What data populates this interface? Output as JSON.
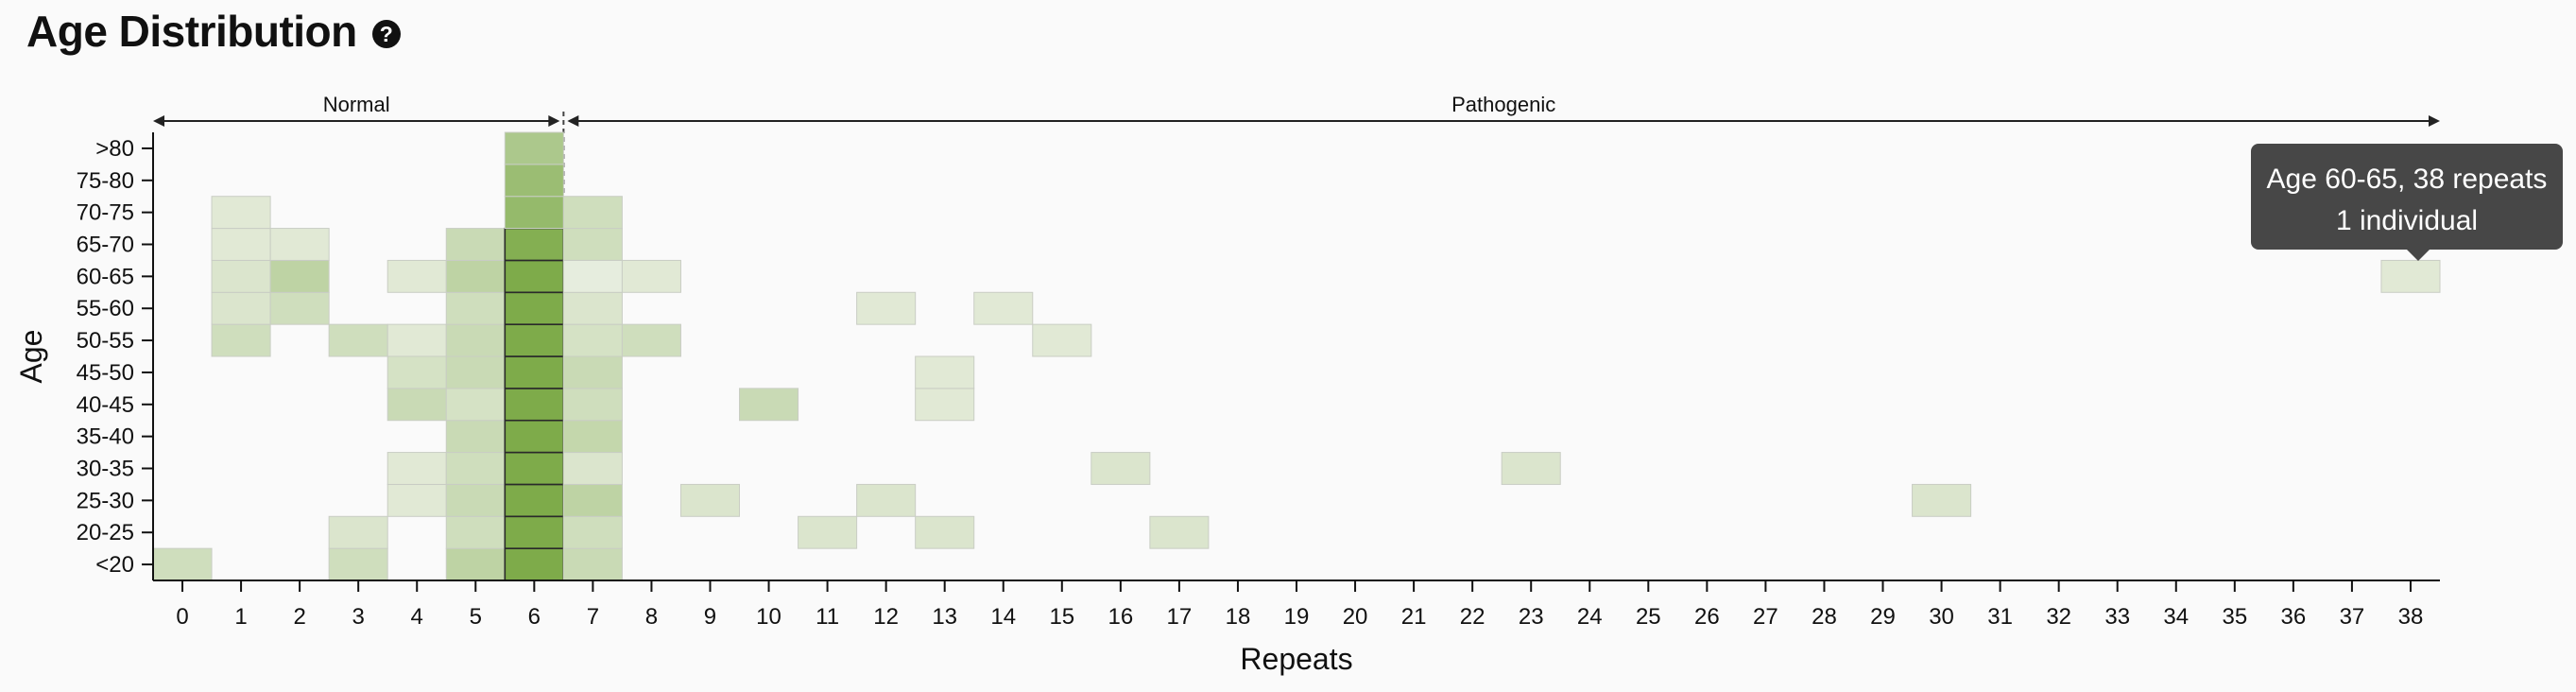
{
  "header": {
    "title": "Age Distribution",
    "help_icon": "question-circle-icon"
  },
  "chart_data": {
    "type": "heatmap",
    "title": "Age Distribution",
    "xlabel": "Repeats",
    "ylabel": "Age",
    "x": [
      0,
      1,
      2,
      3,
      4,
      5,
      6,
      7,
      8,
      9,
      10,
      11,
      12,
      13,
      14,
      15,
      16,
      17,
      18,
      19,
      20,
      21,
      22,
      23,
      24,
      25,
      26,
      27,
      28,
      29,
      30,
      31,
      32,
      33,
      34,
      35,
      36,
      37,
      38
    ],
    "y": [
      "<20",
      "20-25",
      "25-30",
      "30-35",
      "35-40",
      "40-45",
      "45-50",
      "50-55",
      "55-60",
      "60-65",
      "65-70",
      "70-75",
      "75-80",
      ">80"
    ],
    "color_scale": {
      "low": "#f2f4ee",
      "high": "#7eab4a"
    },
    "regions": [
      {
        "label": "Normal",
        "from": 0,
        "to": 6
      },
      {
        "label": "Pathogenic",
        "from": 7,
        "to": 38
      }
    ],
    "cells": [
      {
        "x": 0,
        "y": "<20",
        "level": 0.3
      },
      {
        "x": 1,
        "y": "50-55",
        "level": 0.3
      },
      {
        "x": 1,
        "y": "55-60",
        "level": 0.2
      },
      {
        "x": 1,
        "y": "60-65",
        "level": 0.2
      },
      {
        "x": 1,
        "y": "65-70",
        "level": 0.15
      },
      {
        "x": 1,
        "y": "70-75",
        "level": 0.15
      },
      {
        "x": 2,
        "y": "55-60",
        "level": 0.3
      },
      {
        "x": 2,
        "y": "60-65",
        "level": 0.45
      },
      {
        "x": 2,
        "y": "65-70",
        "level": 0.15
      },
      {
        "x": 3,
        "y": "<20",
        "level": 0.3
      },
      {
        "x": 3,
        "y": "20-25",
        "level": 0.2
      },
      {
        "x": 3,
        "y": "50-55",
        "level": 0.3
      },
      {
        "x": 4,
        "y": "25-30",
        "level": 0.15
      },
      {
        "x": 4,
        "y": "30-35",
        "level": 0.15
      },
      {
        "x": 4,
        "y": "40-45",
        "level": 0.35
      },
      {
        "x": 4,
        "y": "45-50",
        "level": 0.25
      },
      {
        "x": 4,
        "y": "50-55",
        "level": 0.15
      },
      {
        "x": 4,
        "y": "60-65",
        "level": 0.15
      },
      {
        "x": 5,
        "y": "<20",
        "level": 0.45
      },
      {
        "x": 5,
        "y": "20-25",
        "level": 0.3
      },
      {
        "x": 5,
        "y": "25-30",
        "level": 0.35
      },
      {
        "x": 5,
        "y": "30-35",
        "level": 0.3
      },
      {
        "x": 5,
        "y": "35-40",
        "level": 0.35
      },
      {
        "x": 5,
        "y": "40-45",
        "level": 0.25
      },
      {
        "x": 5,
        "y": "45-50",
        "level": 0.35
      },
      {
        "x": 5,
        "y": "50-55",
        "level": 0.35
      },
      {
        "x": 5,
        "y": "55-60",
        "level": 0.3
      },
      {
        "x": 5,
        "y": "60-65",
        "level": 0.45
      },
      {
        "x": 5,
        "y": "65-70",
        "level": 0.35
      },
      {
        "x": 6,
        "y": "<20",
        "level": 1.0
      },
      {
        "x": 6,
        "y": "20-25",
        "level": 1.0
      },
      {
        "x": 6,
        "y": "25-30",
        "level": 1.0
      },
      {
        "x": 6,
        "y": "30-35",
        "level": 1.0
      },
      {
        "x": 6,
        "y": "35-40",
        "level": 1.0
      },
      {
        "x": 6,
        "y": "40-45",
        "level": 1.0
      },
      {
        "x": 6,
        "y": "45-50",
        "level": 1.0
      },
      {
        "x": 6,
        "y": "50-55",
        "level": 1.0
      },
      {
        "x": 6,
        "y": "55-60",
        "level": 1.0
      },
      {
        "x": 6,
        "y": "60-65",
        "level": 1.0
      },
      {
        "x": 6,
        "y": "65-70",
        "level": 0.95
      },
      {
        "x": 6,
        "y": "70-75",
        "level": 0.8
      },
      {
        "x": 6,
        "y": "75-80",
        "level": 0.75
      },
      {
        "x": 6,
        "y": ">80",
        "level": 0.6
      },
      {
        "x": 7,
        "y": "<20",
        "level": 0.35
      },
      {
        "x": 7,
        "y": "20-25",
        "level": 0.3
      },
      {
        "x": 7,
        "y": "25-30",
        "level": 0.45
      },
      {
        "x": 7,
        "y": "30-35",
        "level": 0.2
      },
      {
        "x": 7,
        "y": "35-40",
        "level": 0.4
      },
      {
        "x": 7,
        "y": "40-45",
        "level": 0.3
      },
      {
        "x": 7,
        "y": "45-50",
        "level": 0.35
      },
      {
        "x": 7,
        "y": "50-55",
        "level": 0.25
      },
      {
        "x": 7,
        "y": "55-60",
        "level": 0.2
      },
      {
        "x": 7,
        "y": "60-65",
        "level": 0.1
      },
      {
        "x": 7,
        "y": "65-70",
        "level": 0.3
      },
      {
        "x": 7,
        "y": "70-75",
        "level": 0.3
      },
      {
        "x": 8,
        "y": "50-55",
        "level": 0.3
      },
      {
        "x": 8,
        "y": "60-65",
        "level": 0.15
      },
      {
        "x": 9,
        "y": "25-30",
        "level": 0.2
      },
      {
        "x": 10,
        "y": "40-45",
        "level": 0.35
      },
      {
        "x": 11,
        "y": "20-25",
        "level": 0.2
      },
      {
        "x": 12,
        "y": "25-30",
        "level": 0.2
      },
      {
        "x": 12,
        "y": "55-60",
        "level": 0.15
      },
      {
        "x": 13,
        "y": "20-25",
        "level": 0.2
      },
      {
        "x": 13,
        "y": "40-45",
        "level": 0.15
      },
      {
        "x": 13,
        "y": "45-50",
        "level": 0.15
      },
      {
        "x": 14,
        "y": "55-60",
        "level": 0.15
      },
      {
        "x": 15,
        "y": "50-55",
        "level": 0.15
      },
      {
        "x": 16,
        "y": "30-35",
        "level": 0.2
      },
      {
        "x": 17,
        "y": "20-25",
        "level": 0.2
      },
      {
        "x": 23,
        "y": "30-35",
        "level": 0.2
      },
      {
        "x": 30,
        "y": "25-30",
        "level": 0.2
      },
      {
        "x": 38,
        "y": "60-65",
        "level": 0.15
      }
    ],
    "tooltip": {
      "line1": "Age 60-65, 38 repeats",
      "line2": "1 individual"
    }
  }
}
